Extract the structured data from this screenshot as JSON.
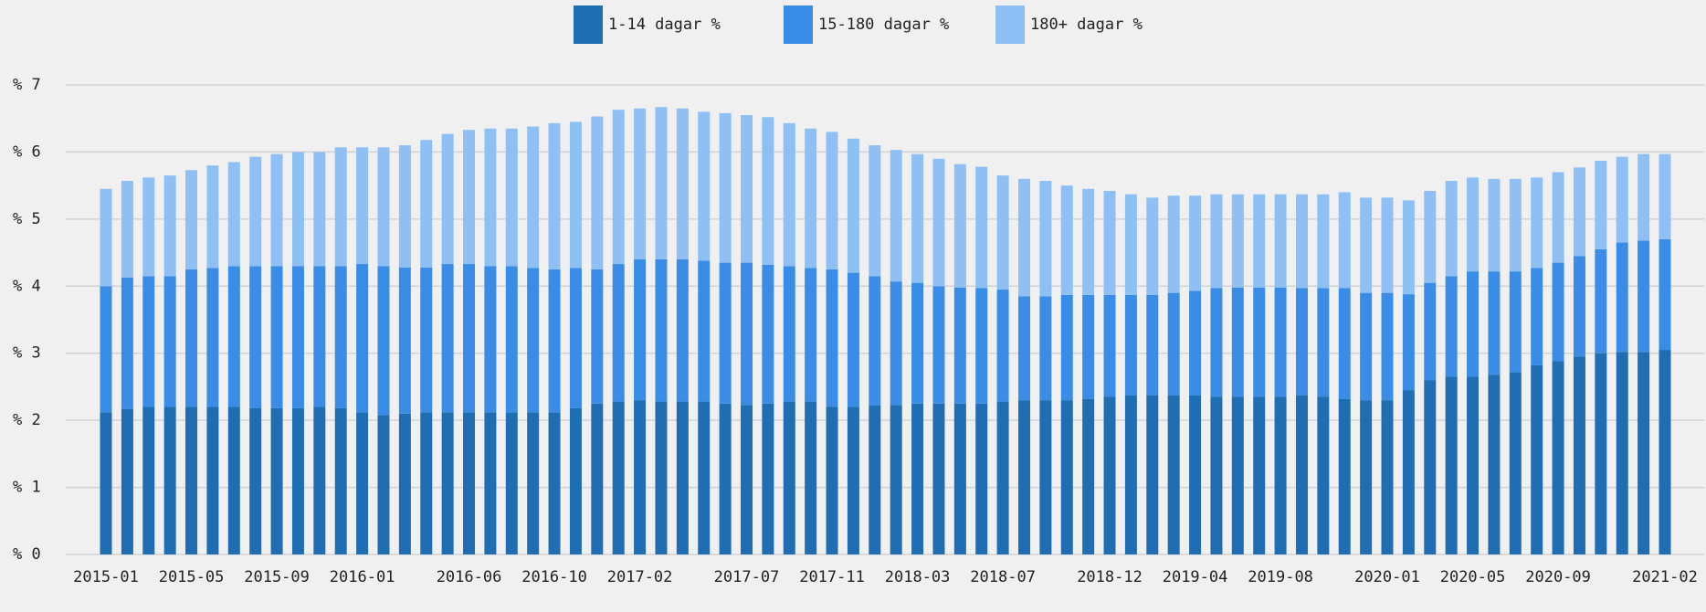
{
  "chart_data": {
    "type": "stacked_bar",
    "categories": [
      "2015-01",
      null,
      null,
      null,
      "2015-05",
      null,
      null,
      null,
      "2015-09",
      null,
      null,
      null,
      "2016-01",
      null,
      null,
      null,
      null,
      "2016-06",
      null,
      null,
      null,
      "2016-10",
      null,
      null,
      null,
      "2017-02",
      null,
      null,
      null,
      null,
      "2017-07",
      null,
      null,
      null,
      "2017-11",
      null,
      null,
      null,
      "2018-03",
      null,
      null,
      null,
      "2018-07",
      null,
      null,
      null,
      null,
      "2018-12",
      null,
      null,
      null,
      "2019-04",
      null,
      null,
      null,
      "2019-08",
      null,
      null,
      null,
      null,
      "2020-01",
      null,
      null,
      null,
      "2020-05",
      null,
      null,
      null,
      "2020-09",
      null,
      null,
      null,
      null,
      "2021-02"
    ],
    "series": [
      {
        "name": "1-14 dagar %",
        "color": "#1f6db3",
        "values": [
          2.12,
          2.17,
          2.2,
          2.2,
          2.2,
          2.2,
          2.2,
          2.18,
          2.18,
          2.18,
          2.2,
          2.18,
          2.12,
          2.08,
          2.1,
          2.12,
          2.12,
          2.12,
          2.12,
          2.12,
          2.12,
          2.12,
          2.18,
          2.25,
          2.28,
          2.3,
          2.28,
          2.28,
          2.28,
          2.25,
          2.23,
          2.25,
          2.28,
          2.28,
          2.2,
          2.2,
          2.22,
          2.23,
          2.25,
          2.25,
          2.25,
          2.25,
          2.28,
          2.3,
          2.3,
          2.3,
          2.32,
          2.35,
          2.37,
          2.37,
          2.37,
          2.37,
          2.35,
          2.35,
          2.35,
          2.35,
          2.37,
          2.35,
          2.32,
          2.3,
          2.3,
          2.45,
          2.6,
          2.65,
          2.65,
          2.68,
          2.72,
          2.82,
          2.88,
          2.95,
          3.0,
          3.02,
          3.02,
          3.05
        ]
      },
      {
        "name": "15-180 dagar %",
        "color": "#3a8de6",
        "values": [
          1.88,
          1.96,
          1.95,
          1.95,
          2.05,
          2.07,
          2.1,
          2.12,
          2.12,
          2.12,
          2.1,
          2.12,
          2.21,
          2.22,
          2.18,
          2.16,
          2.21,
          2.21,
          2.18,
          2.18,
          2.15,
          2.13,
          2.09,
          2.0,
          2.05,
          2.1,
          2.12,
          2.12,
          2.1,
          2.1,
          2.12,
          2.07,
          2.02,
          1.99,
          2.05,
          2.0,
          1.93,
          1.84,
          1.8,
          1.75,
          1.73,
          1.72,
          1.67,
          1.55,
          1.55,
          1.57,
          1.55,
          1.52,
          1.5,
          1.5,
          1.53,
          1.56,
          1.62,
          1.63,
          1.63,
          1.63,
          1.6,
          1.62,
          1.65,
          1.6,
          1.6,
          1.43,
          1.45,
          1.5,
          1.57,
          1.54,
          1.5,
          1.45,
          1.47,
          1.5,
          1.55,
          1.63,
          1.66,
          1.65
        ]
      },
      {
        "name": "180+ dagar %",
        "color": "#8fc0f5",
        "values": [
          1.45,
          1.44,
          1.47,
          1.5,
          1.48,
          1.53,
          1.55,
          1.63,
          1.67,
          1.7,
          1.7,
          1.77,
          1.74,
          1.77,
          1.82,
          1.9,
          1.94,
          2.0,
          2.05,
          2.05,
          2.11,
          2.18,
          2.18,
          2.28,
          2.3,
          2.25,
          2.27,
          2.25,
          2.22,
          2.23,
          2.2,
          2.2,
          2.13,
          2.08,
          2.05,
          2.0,
          1.95,
          1.96,
          1.92,
          1.9,
          1.84,
          1.81,
          1.7,
          1.75,
          1.72,
          1.63,
          1.58,
          1.55,
          1.5,
          1.45,
          1.45,
          1.42,
          1.4,
          1.39,
          1.39,
          1.39,
          1.4,
          1.4,
          1.43,
          1.42,
          1.42,
          1.4,
          1.37,
          1.42,
          1.4,
          1.38,
          1.38,
          1.35,
          1.35,
          1.32,
          1.32,
          1.28,
          1.29,
          1.27
        ]
      }
    ],
    "ylim": [
      0,
      7
    ],
    "yticks": [
      {
        "value": 0,
        "label": "% 0"
      },
      {
        "value": 1,
        "label": "% 1"
      },
      {
        "value": 2,
        "label": "% 2"
      },
      {
        "value": 3,
        "label": "% 3"
      },
      {
        "value": 4,
        "label": "% 4"
      },
      {
        "value": 5,
        "label": "% 5"
      },
      {
        "value": 6,
        "label": "% 6"
      },
      {
        "value": 7,
        "label": "% 7"
      }
    ],
    "grid": true,
    "legend": "top"
  }
}
